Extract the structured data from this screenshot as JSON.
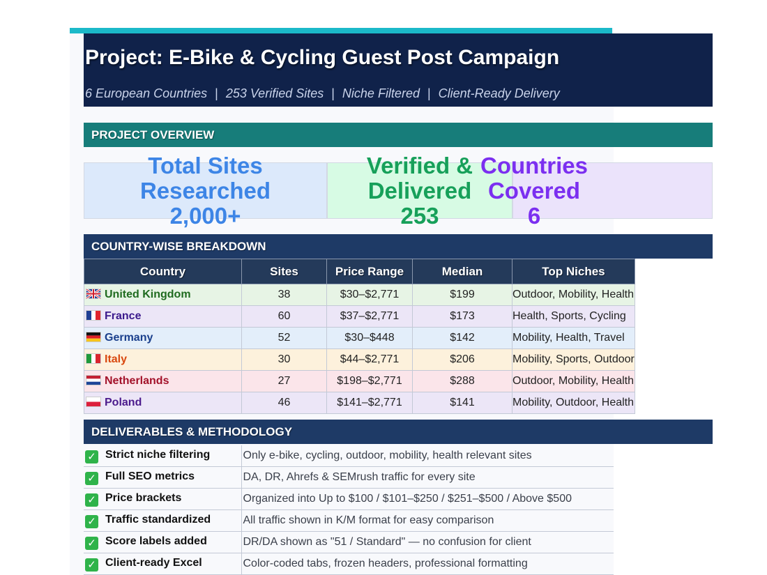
{
  "header": {
    "title": "Project: E-Bike & Cycling Guest Post Campaign",
    "subtitle_parts": [
      "6 European Countries",
      "253 Verified Sites",
      "Niche Filtered",
      "Client-Ready Delivery"
    ],
    "separator": "|"
  },
  "sections": {
    "overview": "PROJECT OVERVIEW",
    "breakdown": "COUNTRY-WISE BREAKDOWN",
    "deliverables": "DELIVERABLES & METHODOLOGY"
  },
  "stats": [
    {
      "line1": "Total Sites",
      "line2": "Researched",
      "line3": "2,000+"
    },
    {
      "line1": "Verified &",
      "line2": "Delivered",
      "line3": "253"
    },
    {
      "line1": "Countries",
      "line2": "Covered",
      "line3": "6"
    }
  ],
  "table": {
    "headers": [
      "Country",
      "Sites",
      "Price Range",
      "Median",
      "Top Niches"
    ],
    "rows": [
      {
        "country": "United Kingdom",
        "sites": "38",
        "price_range": "$30–$2,771",
        "median": "$199",
        "niches": "Outdoor, Mobility, Health",
        "color": "#1f6b1f",
        "flag": "uk"
      },
      {
        "country": "France",
        "sites": "60",
        "price_range": "$37–$2,771",
        "median": "$173",
        "niches": "Health, Sports, Cycling",
        "color": "#3b1a8c",
        "flag": "fr"
      },
      {
        "country": "Germany",
        "sites": "52",
        "price_range": "$30–$448",
        "median": "$142",
        "niches": "Mobility, Health, Travel",
        "color": "#1a3f8c",
        "flag": "de"
      },
      {
        "country": "Italy",
        "sites": "30",
        "price_range": "$44–$2,771",
        "median": "$206",
        "niches": "Mobility, Sports, Outdoor",
        "color": "#d9480f",
        "flag": "it"
      },
      {
        "country": "Netherlands",
        "sites": "27",
        "price_range": "$198–$2,771",
        "median": "$288",
        "niches": "Outdoor, Mobility, Health",
        "color": "#a3122a",
        "flag": "nl"
      },
      {
        "country": "Poland",
        "sites": "46",
        "price_range": "$141–$2,771",
        "median": "$141",
        "niches": "Mobility, Outdoor, Health",
        "color": "#4b1a8c",
        "flag": "pl"
      }
    ]
  },
  "methodology": [
    {
      "label": "Strict niche filtering",
      "desc": "Only e-bike, cycling, outdoor, mobility, health relevant sites"
    },
    {
      "label": "Full SEO metrics",
      "desc": "DA, DR, Ahrefs & SEMrush traffic for every site"
    },
    {
      "label": "Price brackets",
      "desc": "Organized into Up to $100 / $101–$250 / $251–$500 / Above $500"
    },
    {
      "label": "Traffic standardized",
      "desc": "All traffic shown in K/M format for easy comparison"
    },
    {
      "label": "Score labels added",
      "desc": "DR/DA shown as \"51 / Standard\" — no confusion for client"
    },
    {
      "label": "Client-ready Excel",
      "desc": "Color-coded tabs, frozen headers, professional formatting"
    }
  ],
  "check_glyph": "✓"
}
